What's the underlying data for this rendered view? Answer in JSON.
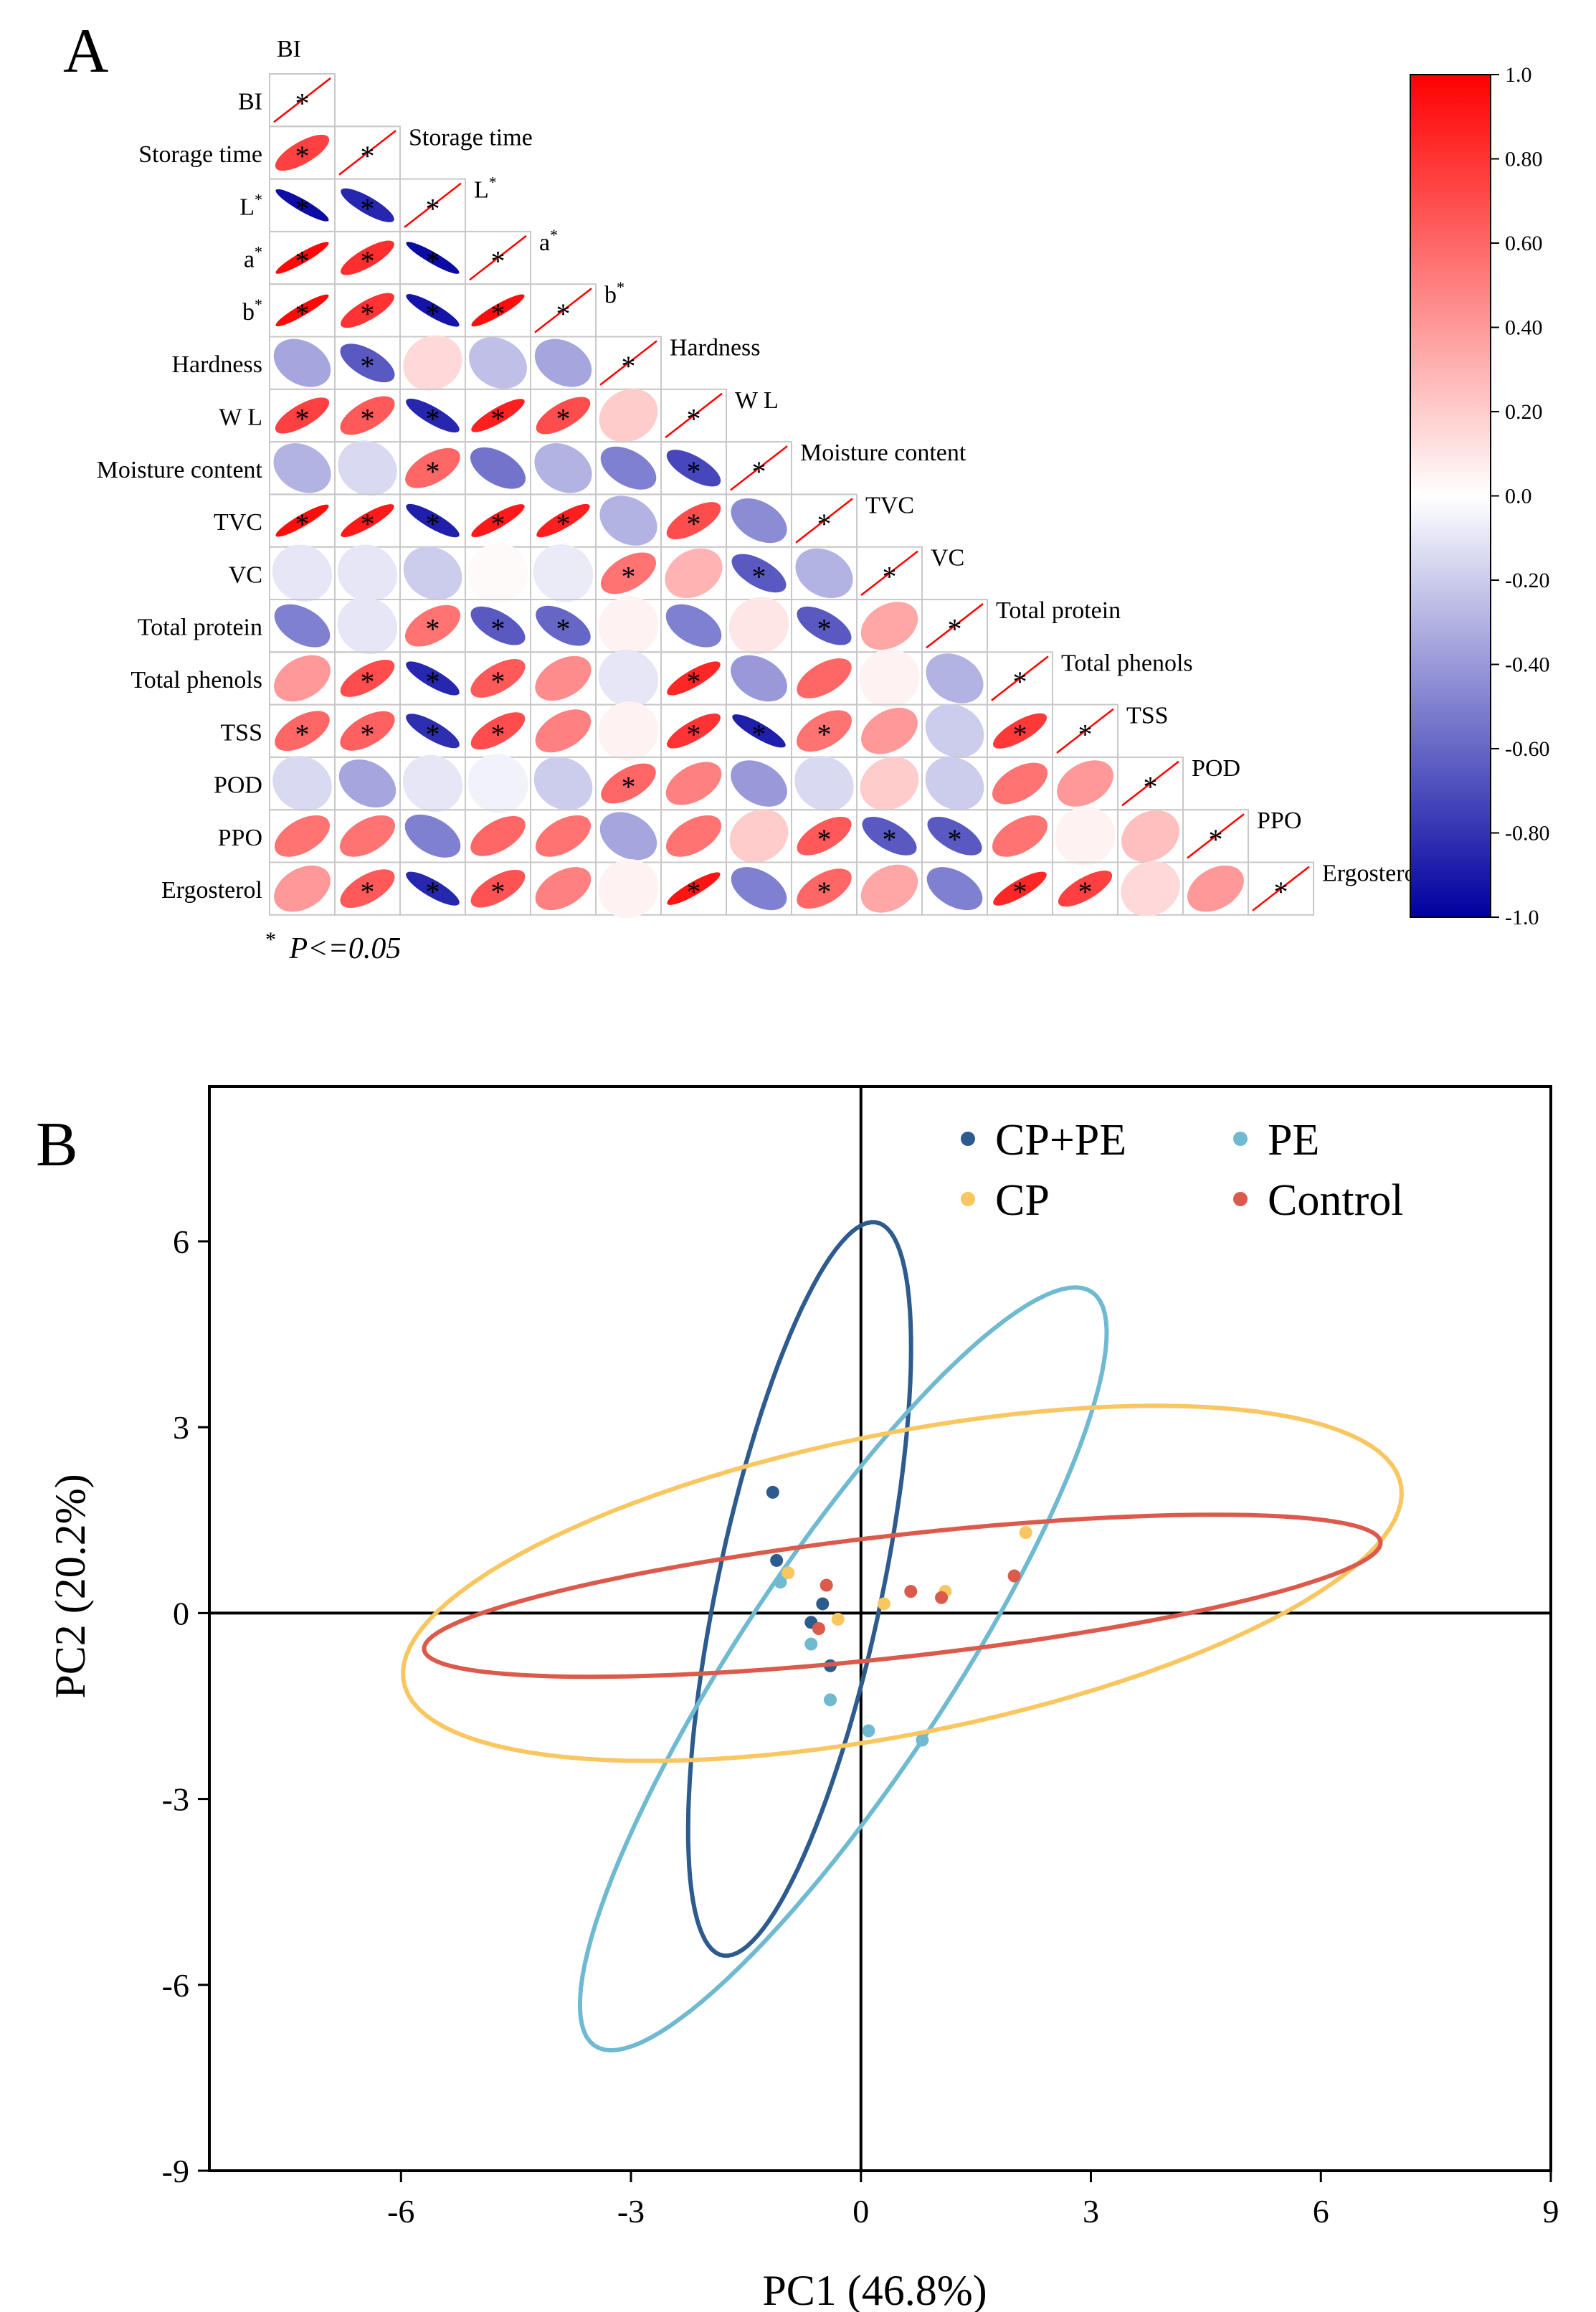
{
  "chart_data": [
    {
      "type": "heatmap",
      "panel_label": "A",
      "variables": [
        "BI",
        "Storage time",
        "L",
        "a",
        "b",
        "Hardness",
        "W L",
        "Moisture content",
        "TVC",
        "VC",
        "Total protein",
        "Total phenols",
        "TSS",
        "POD",
        "PPO",
        "Ergosterol"
      ],
      "superscripts": [
        "",
        "",
        "*",
        "*",
        "*",
        "",
        "",
        "",
        "",
        "",
        "",
        "",
        "",
        "",
        "",
        ""
      ],
      "correlations_lower_triangle": [
        [
          1.0
        ],
        [
          0.75,
          1.0
        ],
        [
          -0.95,
          -0.85,
          1.0
        ],
        [
          0.97,
          0.82,
          -0.96,
          1.0
        ],
        [
          0.97,
          0.8,
          -0.92,
          0.95,
          1.0
        ],
        [
          -0.35,
          -0.65,
          0.15,
          -0.25,
          -0.35,
          1.0
        ],
        [
          0.75,
          0.65,
          -0.85,
          0.88,
          0.7,
          0.2,
          1.0
        ],
        [
          -0.3,
          -0.15,
          0.6,
          -0.55,
          -0.3,
          -0.5,
          -0.72,
          1.0
        ],
        [
          0.95,
          0.9,
          -0.88,
          0.9,
          0.88,
          -0.3,
          0.7,
          -0.45,
          1.0
        ],
        [
          -0.1,
          -0.1,
          -0.2,
          0.02,
          -0.08,
          0.55,
          0.3,
          -0.65,
          -0.3,
          1.0
        ],
        [
          -0.5,
          -0.1,
          0.55,
          -0.65,
          -0.6,
          0.05,
          -0.5,
          0.1,
          -0.65,
          0.35,
          1.0
        ],
        [
          0.4,
          0.7,
          -0.85,
          0.65,
          0.45,
          -0.1,
          0.85,
          -0.4,
          0.6,
          0.05,
          -0.3,
          1.0
        ],
        [
          0.6,
          0.62,
          -0.82,
          0.7,
          0.5,
          0.05,
          0.8,
          -0.88,
          0.55,
          0.4,
          -0.2,
          0.78,
          1.0
        ],
        [
          -0.15,
          -0.35,
          -0.1,
          -0.05,
          -0.2,
          0.6,
          0.5,
          -0.4,
          -0.15,
          0.2,
          -0.2,
          0.55,
          0.4,
          1.0
        ],
        [
          0.55,
          0.55,
          -0.5,
          0.6,
          0.55,
          -0.35,
          0.55,
          0.2,
          0.65,
          -0.65,
          -0.65,
          0.55,
          0.05,
          0.25,
          1.0
        ],
        [
          0.4,
          0.65,
          -0.85,
          0.68,
          0.5,
          0.05,
          0.92,
          -0.5,
          0.6,
          0.35,
          -0.5,
          0.85,
          0.75,
          0.15,
          0.4,
          1.0
        ]
      ],
      "significant": [
        [
          1
        ],
        [
          1,
          1
        ],
        [
          1,
          1,
          1
        ],
        [
          1,
          1,
          1,
          1
        ],
        [
          1,
          1,
          1,
          1,
          1
        ],
        [
          0,
          1,
          0,
          0,
          0,
          1
        ],
        [
          1,
          1,
          1,
          1,
          1,
          0,
          1
        ],
        [
          0,
          0,
          1,
          0,
          0,
          0,
          1,
          1
        ],
        [
          1,
          1,
          1,
          1,
          1,
          0,
          1,
          0,
          1
        ],
        [
          0,
          0,
          0,
          0,
          0,
          1,
          0,
          1,
          0,
          1
        ],
        [
          0,
          0,
          1,
          1,
          1,
          0,
          0,
          0,
          1,
          0,
          1
        ],
        [
          0,
          1,
          1,
          1,
          0,
          0,
          1,
          0,
          0,
          0,
          0,
          1
        ],
        [
          1,
          1,
          1,
          1,
          0,
          0,
          1,
          1,
          1,
          0,
          0,
          1,
          1
        ],
        [
          0,
          0,
          0,
          0,
          0,
          1,
          0,
          0,
          0,
          0,
          0,
          0,
          0,
          1
        ],
        [
          0,
          0,
          0,
          0,
          0,
          0,
          0,
          0,
          1,
          1,
          1,
          0,
          0,
          0,
          1
        ],
        [
          0,
          1,
          1,
          1,
          0,
          0,
          1,
          0,
          1,
          0,
          0,
          1,
          1,
          0,
          0,
          1
        ]
      ],
      "star_symbol": "*",
      "legend_footnote_symbol": "*",
      "legend_footnote": "P<=0.05",
      "colorbar": {
        "range": [
          -1.0,
          1.0
        ],
        "ticks": [
          "1.0",
          "0.80",
          "0.60",
          "0.40",
          "0.20",
          "0.0",
          "-0.20",
          "-0.40",
          "-0.60",
          "-0.80",
          "-1.0"
        ],
        "colors": {
          "negative": "#0000a0",
          "zero": "#ffffff",
          "positive": "#ff0000"
        }
      }
    },
    {
      "type": "scatter",
      "panel_label": "B",
      "xlabel": "PC1 (46.8%)",
      "ylabel": "PC2 (20.2%)",
      "xlim": [
        -8.5,
        9
      ],
      "ylim": [
        -9,
        8.5
      ],
      "xticks": [
        "-6",
        "-3",
        "0",
        "3",
        "6",
        "9"
      ],
      "yticks": [
        "-9",
        "-6",
        "-3",
        "0",
        "3",
        "6"
      ],
      "tick_values_x": [
        -6,
        -3,
        0,
        3,
        6,
        9
      ],
      "tick_values_y": [
        -9,
        -6,
        -3,
        0,
        3,
        6
      ],
      "series": [
        {
          "name": "CP+PE",
          "color": "#2e5b8e",
          "points": [
            [
              -1.15,
              1.95
            ],
            [
              -1.1,
              0.85
            ],
            [
              -0.5,
              0.15
            ],
            [
              -0.65,
              -0.15
            ],
            [
              -0.4,
              -0.85
            ]
          ],
          "ellipse": {
            "cx": -0.8,
            "cy": 0.39,
            "a": 6.0,
            "b": 1.08,
            "angle_deg": 80.5
          }
        },
        {
          "name": "PE",
          "color": "#6fbad1",
          "points": [
            [
              -1.05,
              0.5
            ],
            [
              -0.65,
              -0.5
            ],
            [
              -0.4,
              -1.4
            ],
            [
              0.1,
              -1.9
            ],
            [
              0.8,
              -2.05
            ]
          ],
          "ellipse": {
            "cx": -0.23,
            "cy": -0.9,
            "a": 6.9,
            "b": 1.45,
            "angle_deg": 62.5
          }
        },
        {
          "name": "CP",
          "color": "#f9c65f",
          "points": [
            [
              -0.95,
              0.65
            ],
            [
              -0.3,
              -0.1
            ],
            [
              0.3,
              0.15
            ],
            [
              1.1,
              0.35
            ],
            [
              2.15,
              1.3
            ]
          ],
          "ellipse": {
            "cx": 0.54,
            "cy": 0.48,
            "a": 6.7,
            "b": 2.4,
            "angle_deg": 14.5
          }
        },
        {
          "name": "Control",
          "color": "#dc5a4b",
          "points": [
            [
              -0.55,
              -0.25
            ],
            [
              -0.45,
              0.45
            ],
            [
              0.65,
              0.35
            ],
            [
              1.05,
              0.25
            ],
            [
              2.0,
              0.6
            ]
          ],
          "ellipse": {
            "cx": 0.54,
            "cy": 0.28,
            "a": 6.3,
            "b": 0.98,
            "angle_deg": 8.0
          }
        }
      ],
      "legend_position": "top-right"
    }
  ]
}
